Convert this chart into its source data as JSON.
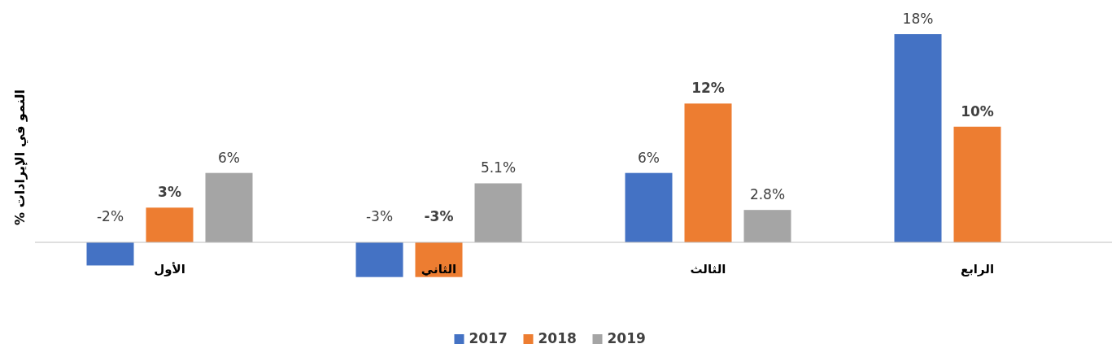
{
  "chart_data": {
    "type": "bar",
    "ylabel": "% النمو في الإيرادات",
    "relative": false,
    "categories": [
      "الأول",
      "الثاني",
      "الثالث",
      "الرابع"
    ],
    "series": [
      {
        "name": "2017",
        "color": "#4472c4",
        "values": [
          -2,
          -3,
          6,
          18
        ],
        "value_labels": [
          "-2%",
          "-3%",
          "6%",
          "18%"
        ]
      },
      {
        "name": "2018",
        "color": "#ed7d31",
        "values": [
          3,
          -3,
          12,
          10
        ],
        "value_labels": [
          "3%",
          "-3%",
          "12%",
          "10%"
        ]
      },
      {
        "name": "2019",
        "color": "#a5a5a5",
        "values": [
          6,
          5.1,
          2.8,
          null
        ],
        "value_labels": [
          "6%",
          "5.1%",
          "2.8%",
          null
        ]
      }
    ],
    "legend": "bottom"
  }
}
